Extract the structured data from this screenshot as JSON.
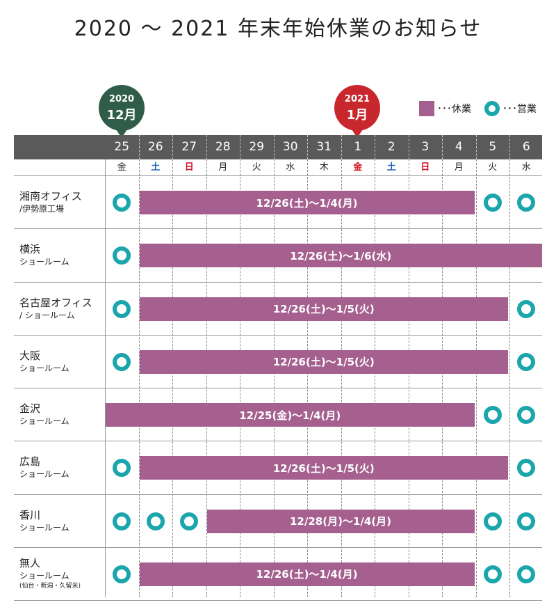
{
  "title": "2020 ～ 2021 年末年始休業のお知らせ",
  "pins": [
    {
      "year": "2020",
      "month": "12月",
      "color": "#2f5d4a"
    },
    {
      "year": "2021",
      "month": "1月",
      "color": "#c8272d"
    }
  ],
  "legend": {
    "holiday_label": "･･･休業",
    "open_label": "･･･営業",
    "holiday_color": "#a5608f",
    "open_color": "#1aa6ac"
  },
  "days": [
    {
      "num": "25",
      "wd": "金",
      "type": "weekday"
    },
    {
      "num": "26",
      "wd": "土",
      "type": "sat"
    },
    {
      "num": "27",
      "wd": "日",
      "type": "sun"
    },
    {
      "num": "28",
      "wd": "月",
      "type": "weekday"
    },
    {
      "num": "29",
      "wd": "火",
      "type": "weekday"
    },
    {
      "num": "30",
      "wd": "水",
      "type": "weekday"
    },
    {
      "num": "31",
      "wd": "木",
      "type": "weekday"
    },
    {
      "num": "1",
      "wd": "金",
      "type": "sun"
    },
    {
      "num": "2",
      "wd": "土",
      "type": "sat"
    },
    {
      "num": "3",
      "wd": "日",
      "type": "sun"
    },
    {
      "num": "4",
      "wd": "月",
      "type": "weekday"
    },
    {
      "num": "5",
      "wd": "火",
      "type": "weekday"
    },
    {
      "num": "6",
      "wd": "水",
      "type": "weekday"
    }
  ],
  "locations": [
    {
      "line1": "湘南オフィス",
      "line2": "/伊勢原工場",
      "line3": "",
      "holiday_text": "12/26(土)～1/4(月)",
      "holiday_from": 1,
      "holiday_to": 10,
      "open": [
        0,
        11,
        12
      ]
    },
    {
      "line1": "横浜",
      "line2": "ショールーム",
      "line3": "",
      "holiday_text": "12/26(土)～1/6(水)",
      "holiday_from": 1,
      "holiday_to": 12,
      "open": [
        0
      ]
    },
    {
      "line1": "名古屋オフィス",
      "line2": "/ ショールーム",
      "line3": "",
      "holiday_text": "12/26(土)～1/5(火)",
      "holiday_from": 1,
      "holiday_to": 11,
      "open": [
        0,
        12
      ]
    },
    {
      "line1": "大阪",
      "line2": "ショールーム",
      "line3": "",
      "holiday_text": "12/26(土)～1/5(火)",
      "holiday_from": 1,
      "holiday_to": 11,
      "open": [
        0,
        12
      ]
    },
    {
      "line1": "金沢",
      "line2": "ショールーム",
      "line3": "",
      "holiday_text": "12/25(金)～1/4(月)",
      "holiday_from": 0,
      "holiday_to": 10,
      "open": [
        11,
        12
      ]
    },
    {
      "line1": "広島",
      "line2": "ショールーム",
      "line3": "",
      "holiday_text": "12/26(土)～1/5(火)",
      "holiday_from": 1,
      "holiday_to": 11,
      "open": [
        0,
        12
      ]
    },
    {
      "line1": "香川",
      "line2": "ショールーム",
      "line3": "",
      "holiday_text": "12/28(月)～1/4(月)",
      "holiday_from": 3,
      "holiday_to": 10,
      "open": [
        0,
        1,
        2,
        11,
        12
      ]
    },
    {
      "line1": "無人",
      "line2": "ショールーム",
      "line3": "(仙台・新潟・久留米)",
      "holiday_text": "12/26(土)～1/4(月)",
      "holiday_from": 1,
      "holiday_to": 10,
      "open": [
        0,
        11,
        12
      ]
    }
  ]
}
